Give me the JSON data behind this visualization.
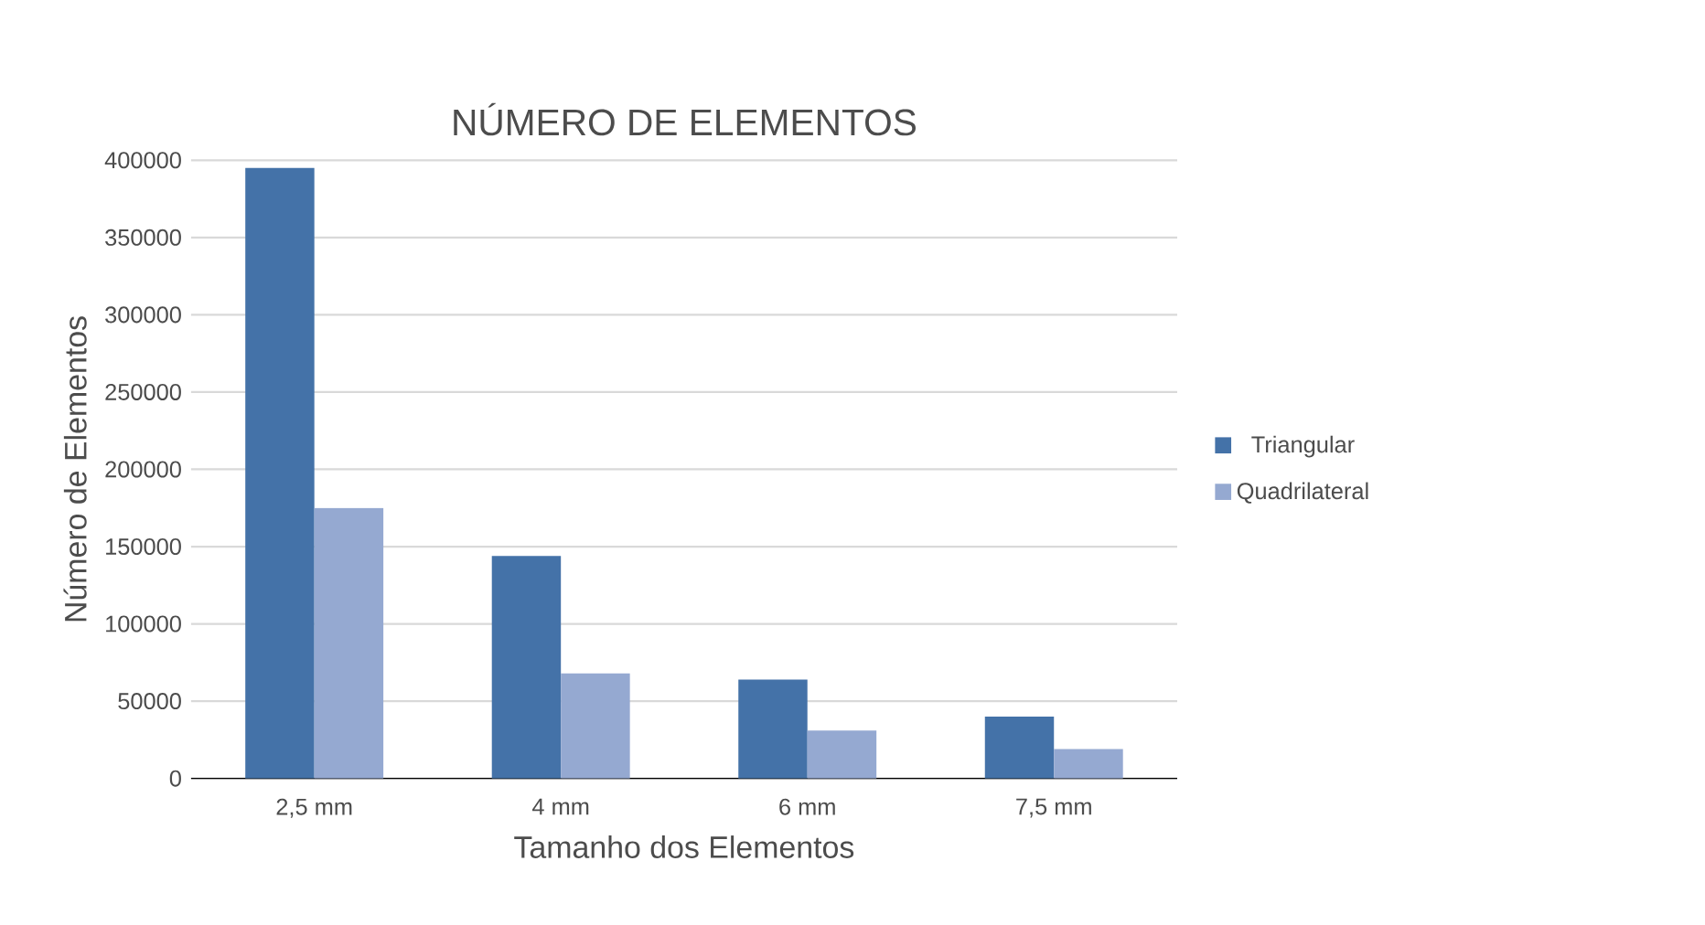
{
  "chart_data": {
    "type": "bar",
    "title": "NÚMERO DE ELEMENTOS",
    "xlabel": "Tamanho dos Elementos",
    "ylabel": "Número de Elementos",
    "categories": [
      "2,5 mm",
      "4 mm",
      "6 mm",
      "7,5 mm"
    ],
    "series": [
      {
        "name": "Triangular",
        "color": "#4472a8",
        "values": [
          395000,
          144000,
          64000,
          40000
        ]
      },
      {
        "name": "Quadrilateral",
        "color": "#95a9d1",
        "values": [
          175000,
          68000,
          31000,
          19000
        ]
      }
    ],
    "ylim": [
      0,
      400000
    ],
    "yticks": [
      0,
      50000,
      100000,
      150000,
      200000,
      250000,
      300000,
      350000,
      400000
    ],
    "grid": "y",
    "legend": "right"
  }
}
